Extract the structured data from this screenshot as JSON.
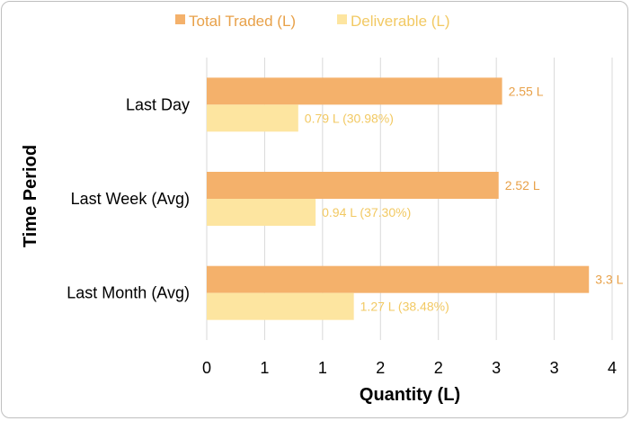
{
  "chart_data": {
    "type": "bar",
    "orientation": "horizontal",
    "categories": [
      "Last Day",
      "Last Week (Avg)",
      "Last Month (Avg)"
    ],
    "series": [
      {
        "name": "Total Traded (L)",
        "color": "#f4b16b",
        "label_color": "#e8a149",
        "values": [
          2.55,
          2.52,
          3.3
        ],
        "data_labels": [
          "2.55 L",
          "2.52 L",
          "3.3 L"
        ]
      },
      {
        "name": "Deliverable (L)",
        "color": "#fde5a0",
        "label_color": "#f2c963",
        "values": [
          0.79,
          0.94,
          1.27
        ],
        "data_labels": [
          "0.79 L (30.98%)",
          "0.94 L (37.30%)",
          "1.27 L (38.48%)"
        ]
      }
    ],
    "xlim": [
      0,
      3.5
    ],
    "x_ticks": [
      0,
      0.5,
      1,
      1.5,
      2,
      2.5,
      3,
      3.5
    ],
    "x_tick_labels": [
      "0",
      "1",
      "1",
      "2",
      "2",
      "3",
      "3",
      "4"
    ],
    "xlabel": "Quantity (L)",
    "ylabel": "Time Period",
    "legend_position": "top-center",
    "grid": "vertical",
    "grid_color": "#d9d9d9"
  }
}
